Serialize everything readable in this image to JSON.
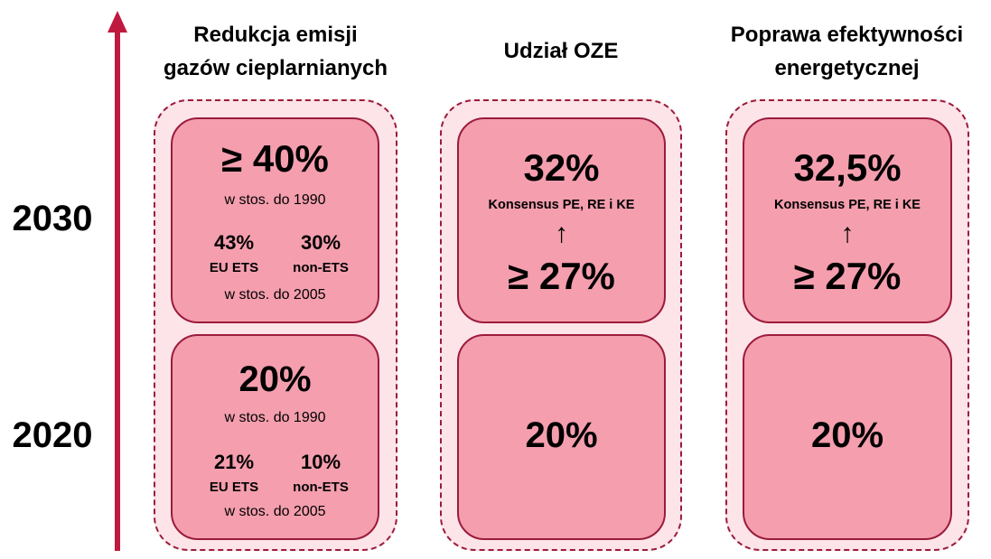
{
  "timeline": {
    "year_top": "2030",
    "year_bottom": "2020"
  },
  "columns": [
    {
      "title_line1": "Redukcja emisji",
      "title_line2": "gazów cieplarnianych",
      "target_2030": {
        "value": "≥ 40%",
        "reference": "w stos. do 1990",
        "split": [
          {
            "value": "43%",
            "label": "EU ETS"
          },
          {
            "value": "30%",
            "label": "non-ETS"
          }
        ],
        "split_reference": "w stos. do 2005"
      },
      "target_2020": {
        "value": "20%",
        "reference": "w stos. do 1990",
        "split": [
          {
            "value": "21%",
            "label": "EU ETS"
          },
          {
            "value": "10%",
            "label": "non-ETS"
          }
        ],
        "split_reference": "w stos. do 2005"
      }
    },
    {
      "title_line1": "Udział OZE",
      "target_2030": {
        "value": "32%",
        "consensus": "Konsensus PE, RE i KE",
        "arrow": "↑",
        "previous": "≥ 27%"
      },
      "target_2020": {
        "value": "20%"
      }
    },
    {
      "title_line1": "Poprawa efektywności",
      "title_line2": "energetycznej",
      "target_2030": {
        "value": "32,5%",
        "consensus": "Konsensus PE, RE i KE",
        "arrow": "↑",
        "previous": "≥ 27%"
      },
      "target_2020": {
        "value": "20%"
      }
    }
  ],
  "colors": {
    "arrow": "#c0193f",
    "border": "#9b1b3c",
    "group_fill": "#fde4e8",
    "box_fill": "#f49eae"
  }
}
